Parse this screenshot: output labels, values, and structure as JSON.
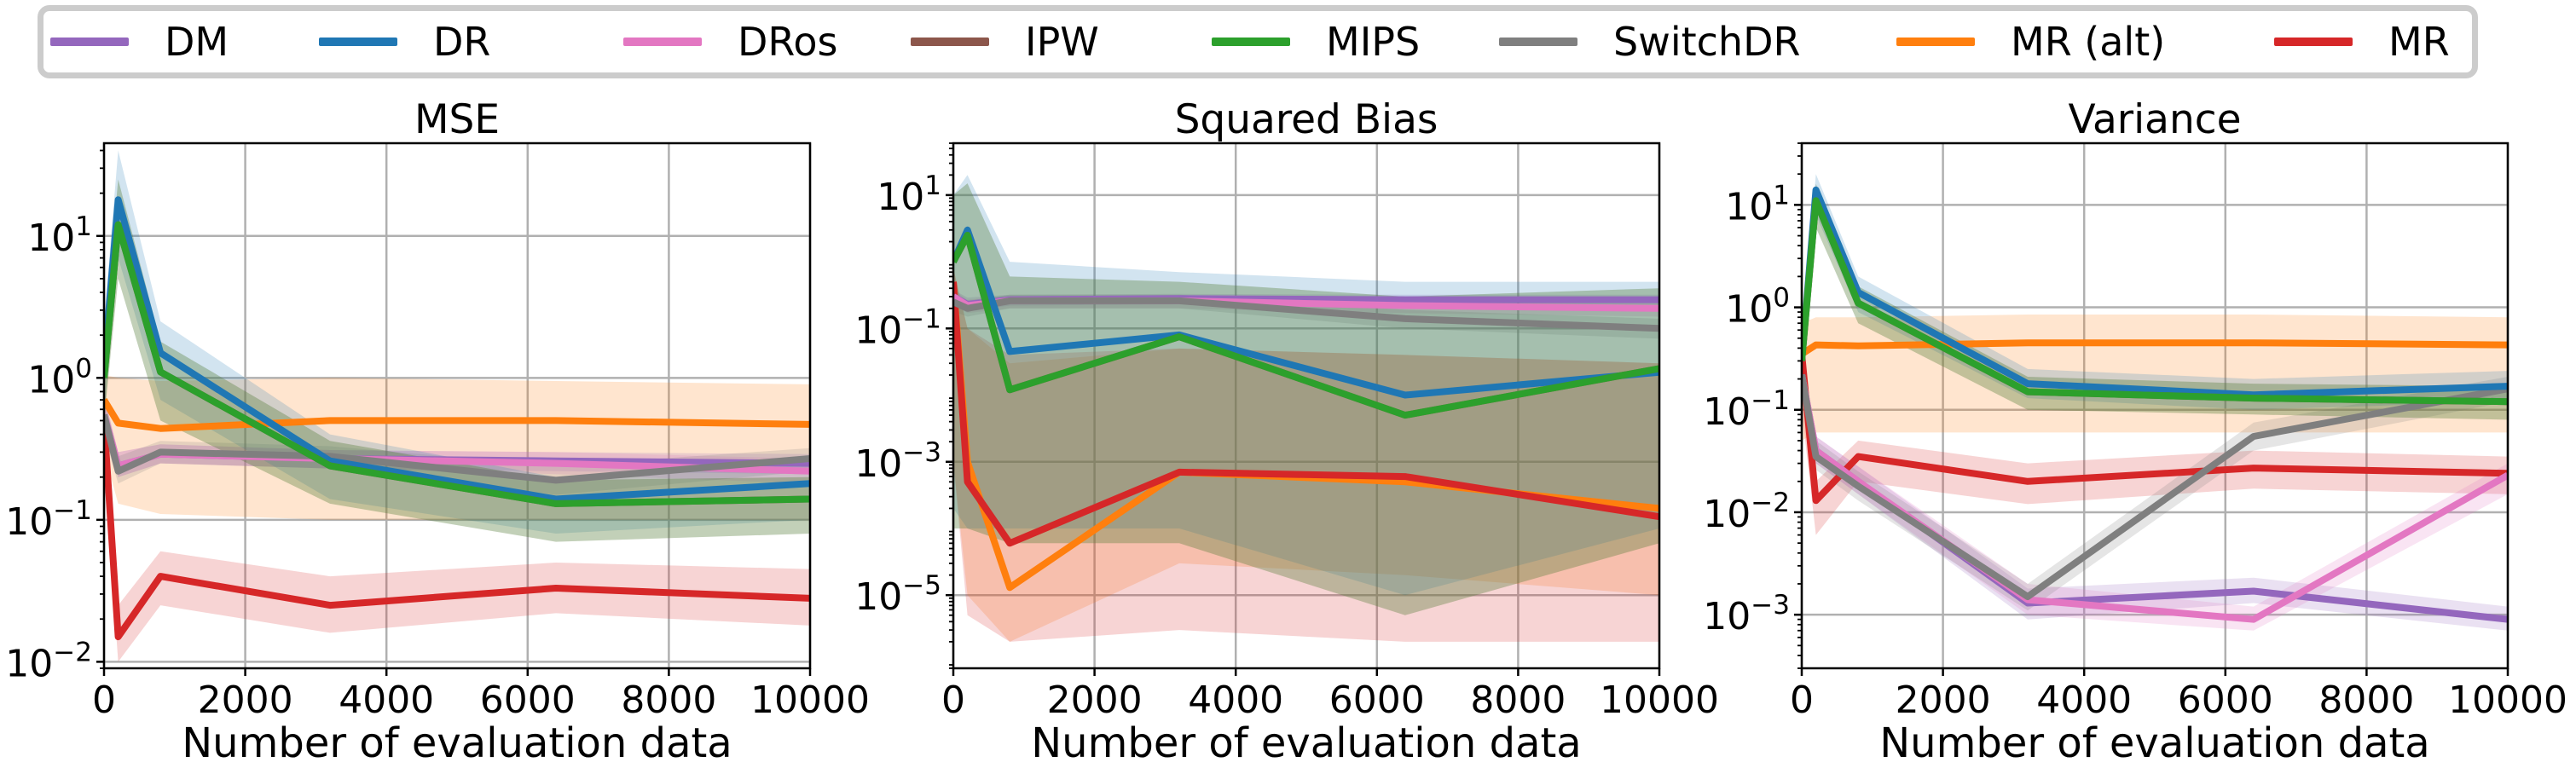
{
  "legend": {
    "items": [
      {
        "label": "DM",
        "color": "#9467bd"
      },
      {
        "label": "DR",
        "color": "#1f77b4"
      },
      {
        "label": "DRos",
        "color": "#e377c2"
      },
      {
        "label": "IPW",
        "color": "#8c564b"
      },
      {
        "label": "MIPS",
        "color": "#2ca02c"
      },
      {
        "label": "SwitchDR",
        "color": "#7f7f7f"
      },
      {
        "label": "MR (alt)",
        "color": "#ff7f0e"
      },
      {
        "label": "MR",
        "color": "#d62728"
      }
    ]
  },
  "chart_data": [
    {
      "type": "line",
      "title": "MSE",
      "xlabel": "Number of evaluation data",
      "ylabel": "",
      "yscale": "log",
      "xlim": [
        0,
        10000
      ],
      "ylim": [
        0.009,
        45
      ],
      "xticks": [
        0,
        2000,
        4000,
        6000,
        8000,
        10000
      ],
      "yticks": [
        {
          "value": 0.01,
          "base": "10",
          "exp": "−2"
        },
        {
          "value": 0.1,
          "base": "10",
          "exp": "−1"
        },
        {
          "value": 1,
          "base": "10",
          "exp": "0"
        },
        {
          "value": 10,
          "base": "10",
          "exp": "1"
        }
      ],
      "grid": true,
      "x": [
        0,
        200,
        800,
        3200,
        6400,
        10000
      ],
      "series": [
        {
          "name": "DM",
          "values": [
            0.55,
            0.24,
            0.29,
            0.27,
            0.26,
            0.25
          ],
          "lower": [
            0.4,
            0.2,
            0.25,
            0.23,
            0.22,
            0.21
          ],
          "upper": [
            0.75,
            0.3,
            0.34,
            0.31,
            0.3,
            0.29
          ]
        },
        {
          "name": "DR",
          "values": [
            1.2,
            18,
            1.5,
            0.26,
            0.14,
            0.18
          ],
          "lower": [
            0.5,
            7,
            0.7,
            0.14,
            0.08,
            0.1
          ],
          "upper": [
            2.5,
            40,
            2.5,
            0.4,
            0.2,
            0.26
          ]
        },
        {
          "name": "DRos",
          "values": [
            0.55,
            0.24,
            0.29,
            0.27,
            0.25,
            0.22
          ],
          "lower": [
            0.4,
            0.2,
            0.25,
            0.23,
            0.21,
            0.18
          ],
          "upper": [
            0.75,
            0.3,
            0.34,
            0.31,
            0.3,
            0.27
          ]
        },
        {
          "name": "IPW",
          "values": [
            1.0,
            12,
            1.1,
            0.24,
            0.13,
            0.14
          ],
          "lower": [
            0.5,
            5,
            0.5,
            0.13,
            0.07,
            0.08
          ],
          "upper": [
            2.0,
            25,
            1.8,
            0.36,
            0.19,
            0.2
          ]
        },
        {
          "name": "MIPS",
          "values": [
            1.0,
            12,
            1.1,
            0.24,
            0.13,
            0.14
          ],
          "lower": [
            0.5,
            5,
            0.5,
            0.13,
            0.07,
            0.08
          ],
          "upper": [
            2.0,
            25,
            1.8,
            0.36,
            0.19,
            0.2
          ]
        },
        {
          "name": "SwitchDR",
          "values": [
            0.55,
            0.22,
            0.3,
            0.28,
            0.19,
            0.27
          ],
          "lower": [
            0.4,
            0.18,
            0.25,
            0.23,
            0.15,
            0.22
          ],
          "upper": [
            0.75,
            0.28,
            0.36,
            0.33,
            0.24,
            0.32
          ]
        },
        {
          "name": "MR (alt)",
          "values": [
            0.7,
            0.48,
            0.44,
            0.5,
            0.5,
            0.47
          ],
          "lower": [
            0.3,
            0.13,
            0.11,
            0.1,
            0.1,
            0.1
          ],
          "upper": [
            1.05,
            1.0,
            0.95,
            1.0,
            0.95,
            0.9
          ]
        },
        {
          "name": "MR",
          "values": [
            0.5,
            0.015,
            0.04,
            0.025,
            0.033,
            0.028
          ],
          "lower": [
            0.25,
            0.01,
            0.025,
            0.016,
            0.022,
            0.018
          ],
          "upper": [
            0.8,
            0.025,
            0.06,
            0.04,
            0.05,
            0.045
          ]
        }
      ]
    },
    {
      "type": "line",
      "title": "Squared Bias",
      "xlabel": "Number of evaluation data",
      "ylabel": "",
      "yscale": "log",
      "xlim": [
        0,
        10000
      ],
      "ylim": [
        8e-07,
        60
      ],
      "xticks": [
        0,
        2000,
        4000,
        6000,
        8000,
        10000
      ],
      "yticks": [
        {
          "value": 1e-05,
          "base": "10",
          "exp": "−5"
        },
        {
          "value": 0.001,
          "base": "10",
          "exp": "−3"
        },
        {
          "value": 0.1,
          "base": "10",
          "exp": "−1"
        },
        {
          "value": 10,
          "base": "10",
          "exp": "1"
        }
      ],
      "grid": true,
      "x": [
        0,
        200,
        800,
        3200,
        6400,
        10000
      ],
      "series": [
        {
          "name": "DM",
          "values": [
            0.3,
            0.23,
            0.27,
            0.28,
            0.27,
            0.27
          ],
          "lower": [
            0.22,
            0.18,
            0.22,
            0.23,
            0.22,
            0.22
          ],
          "upper": [
            0.38,
            0.29,
            0.32,
            0.33,
            0.32,
            0.32
          ]
        },
        {
          "name": "DR",
          "values": [
            1.0,
            3,
            0.045,
            0.08,
            0.01,
            0.022
          ],
          "lower": [
            0.0002,
            0.0001,
            0.0001,
            0.0001,
            1e-05,
            0.0001
          ],
          "upper": [
            10,
            20,
            1.0,
            0.7,
            0.5,
            0.5
          ]
        },
        {
          "name": "DRos",
          "values": [
            0.3,
            0.22,
            0.26,
            0.26,
            0.22,
            0.2
          ],
          "lower": [
            0.22,
            0.17,
            0.2,
            0.2,
            0.17,
            0.15
          ],
          "upper": [
            0.38,
            0.27,
            0.31,
            0.31,
            0.27,
            0.25
          ]
        },
        {
          "name": "IPW",
          "values": [
            1.0,
            2.5,
            0.012,
            0.075,
            0.005,
            0.025
          ],
          "lower": [
            0.0001,
            0.0001,
            6e-05,
            6e-05,
            5e-06,
            6e-05
          ],
          "upper": [
            10,
            15,
            0.6,
            0.5,
            0.3,
            0.4
          ]
        },
        {
          "name": "MIPS",
          "values": [
            1.0,
            2.5,
            0.012,
            0.075,
            0.005,
            0.025
          ],
          "lower": [
            0.0001,
            0.0001,
            6e-05,
            6e-05,
            5e-06,
            6e-05
          ],
          "upper": [
            10,
            15,
            0.6,
            0.5,
            0.3,
            0.4
          ]
        },
        {
          "name": "SwitchDR",
          "values": [
            0.25,
            0.2,
            0.26,
            0.26,
            0.14,
            0.1
          ],
          "lower": [
            0.18,
            0.15,
            0.2,
            0.2,
            0.1,
            0.07
          ],
          "upper": [
            0.33,
            0.26,
            0.32,
            0.32,
            0.19,
            0.14
          ]
        },
        {
          "name": "MR (alt)",
          "values": [
            0.5,
            0.001,
            1.3e-05,
            0.0007,
            0.0005,
            0.0002
          ],
          "lower": [
            0.001,
            1e-05,
            2e-06,
            3e-05,
            2e-05,
            1e-05
          ],
          "upper": [
            0.8,
            0.1,
            0.03,
            0.05,
            0.04,
            0.03
          ]
        },
        {
          "name": "MR",
          "values": [
            0.5,
            0.0005,
            6e-05,
            0.0007,
            0.0006,
            0.00015
          ],
          "lower": [
            0.001,
            5e-06,
            2e-06,
            3e-06,
            2e-06,
            2e-06
          ],
          "upper": [
            0.8,
            0.1,
            0.04,
            0.05,
            0.04,
            0.03
          ]
        }
      ]
    },
    {
      "type": "line",
      "title": "Variance",
      "xlabel": "Number of evaluation data",
      "ylabel": "",
      "yscale": "log",
      "xlim": [
        0,
        10000
      ],
      "ylim": [
        0.0003,
        40
      ],
      "xticks": [
        0,
        2000,
        4000,
        6000,
        8000,
        10000
      ],
      "yticks": [
        {
          "value": 0.001,
          "base": "10",
          "exp": "−3"
        },
        {
          "value": 0.01,
          "base": "10",
          "exp": "−2"
        },
        {
          "value": 0.1,
          "base": "10",
          "exp": "−1"
        },
        {
          "value": 1,
          "base": "10",
          "exp": "0"
        },
        {
          "value": 10,
          "base": "10",
          "exp": "1"
        }
      ],
      "grid": true,
      "x": [
        0,
        200,
        800,
        3200,
        6400,
        10000
      ],
      "series": [
        {
          "name": "DM",
          "values": [
            0.22,
            0.04,
            0.02,
            0.0013,
            0.0017,
            0.0009
          ],
          "lower": [
            0.15,
            0.03,
            0.015,
            0.0009,
            0.0013,
            0.0007
          ],
          "upper": [
            0.3,
            0.055,
            0.028,
            0.0018,
            0.0023,
            0.0012
          ]
        },
        {
          "name": "DR",
          "values": [
            0.3,
            14,
            1.4,
            0.18,
            0.14,
            0.17
          ],
          "lower": [
            0.15,
            8,
            0.9,
            0.13,
            0.1,
            0.12
          ],
          "upper": [
            0.5,
            20,
            2.0,
            0.25,
            0.2,
            0.24
          ]
        },
        {
          "name": "DRos",
          "values": [
            0.22,
            0.04,
            0.02,
            0.0014,
            0.0009,
            0.023
          ],
          "lower": [
            0.15,
            0.03,
            0.015,
            0.001,
            0.0007,
            0.015
          ],
          "upper": [
            0.3,
            0.055,
            0.028,
            0.002,
            0.0012,
            0.03
          ]
        },
        {
          "name": "IPW",
          "values": [
            0.3,
            11,
            1.1,
            0.15,
            0.13,
            0.12
          ],
          "lower": [
            0.15,
            6,
            0.7,
            0.1,
            0.09,
            0.08
          ],
          "upper": [
            0.5,
            16,
            1.6,
            0.21,
            0.18,
            0.17
          ]
        },
        {
          "name": "MIPS",
          "values": [
            0.3,
            11,
            1.1,
            0.15,
            0.13,
            0.12
          ],
          "lower": [
            0.15,
            6,
            0.7,
            0.1,
            0.09,
            0.08
          ],
          "upper": [
            0.5,
            16,
            1.6,
            0.21,
            0.18,
            0.17
          ]
        },
        {
          "name": "SwitchDR",
          "values": [
            0.22,
            0.035,
            0.018,
            0.0015,
            0.055,
            0.16
          ],
          "lower": [
            0.15,
            0.026,
            0.013,
            0.0011,
            0.04,
            0.12
          ],
          "upper": [
            0.3,
            0.05,
            0.025,
            0.002,
            0.075,
            0.21
          ]
        },
        {
          "name": "MR (alt)",
          "values": [
            0.35,
            0.43,
            0.42,
            0.45,
            0.45,
            0.43
          ],
          "lower": [
            0.05,
            0.06,
            0.06,
            0.06,
            0.06,
            0.06
          ],
          "upper": [
            0.7,
            0.8,
            0.8,
            0.85,
            0.85,
            0.8
          ]
        },
        {
          "name": "MR",
          "values": [
            0.35,
            0.013,
            0.035,
            0.02,
            0.027,
            0.024
          ],
          "lower": [
            0.1,
            0.006,
            0.02,
            0.012,
            0.017,
            0.015
          ],
          "upper": [
            0.7,
            0.02,
            0.05,
            0.03,
            0.04,
            0.035
          ]
        }
      ]
    }
  ]
}
